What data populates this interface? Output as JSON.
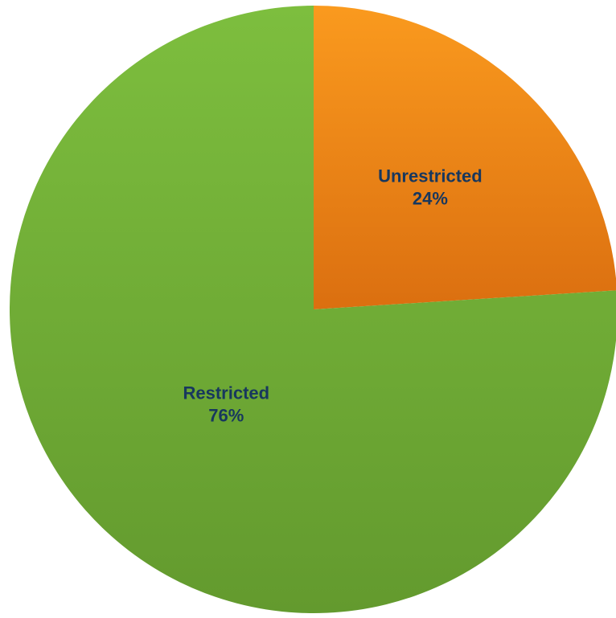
{
  "chart_data": {
    "type": "pie",
    "title": "",
    "slices": [
      {
        "label": "Unrestricted",
        "value": 24,
        "value_label": "24%",
        "color": "#F7941D"
      },
      {
        "label": "Restricted",
        "value": 76,
        "value_label": "76%",
        "color": "#76B43C"
      }
    ],
    "start": "12 o'clock",
    "direction": "clockwise",
    "data_label_color": "#17375E",
    "legend": "none"
  }
}
